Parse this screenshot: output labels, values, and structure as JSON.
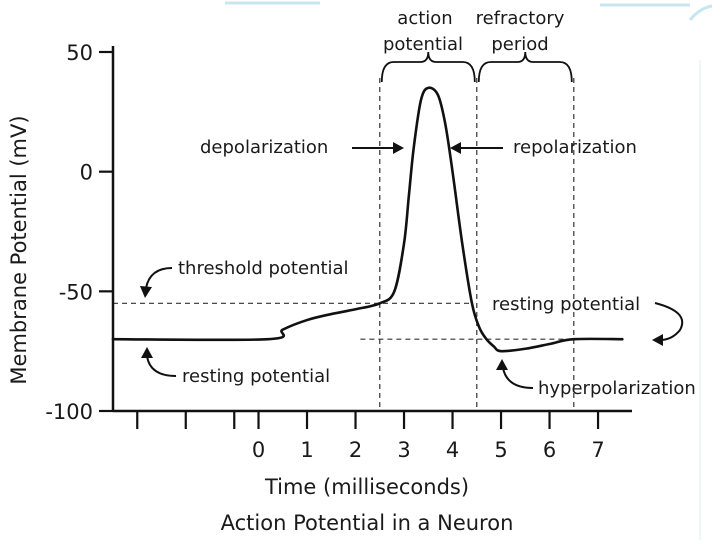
{
  "chart_data": {
    "type": "line",
    "title": "Action Potential in a Neuron",
    "xlabel": "Time (milliseconds)",
    "ylabel": "Membrane Potential (mV)",
    "xlim": [
      -3,
      7.7
    ],
    "ylim": [
      -100,
      50
    ],
    "x_ticks": [
      0,
      1,
      2,
      3,
      4,
      5,
      6,
      7
    ],
    "x_tick_labels": [
      "0",
      "1",
      "2",
      "3",
      "4",
      "5",
      "6",
      "7"
    ],
    "y_ticks": [
      50,
      0,
      -50,
      -100
    ],
    "y_tick_labels": [
      "50",
      "0",
      "-50",
      "-100"
    ],
    "minor_x_ticks": [
      -2.5,
      -1.5,
      -0.5
    ],
    "series": [
      {
        "points": [
          [
            -3.0,
            -70
          ],
          [
            0.2,
            -70
          ],
          [
            0.5,
            -66
          ],
          [
            1.0,
            -62
          ],
          [
            1.5,
            -59.5
          ],
          [
            2.0,
            -57.5
          ],
          [
            2.5,
            -55
          ],
          [
            2.8,
            -50
          ],
          [
            3.0,
            -30
          ],
          [
            3.1,
            -10
          ],
          [
            3.2,
            10
          ],
          [
            3.35,
            30
          ],
          [
            3.5,
            35
          ],
          [
            3.7,
            32
          ],
          [
            3.85,
            20
          ],
          [
            4.0,
            0
          ],
          [
            4.2,
            -30
          ],
          [
            4.4,
            -55
          ],
          [
            4.55,
            -65
          ],
          [
            4.7,
            -70
          ],
          [
            4.85,
            -73
          ],
          [
            5.0,
            -75
          ],
          [
            5.5,
            -74
          ],
          [
            6.0,
            -72
          ],
          [
            6.5,
            -70
          ],
          [
            7.5,
            -70
          ]
        ]
      }
    ],
    "reference_lines": {
      "threshold_y": -55,
      "resting_y": -70,
      "vertical_x": [
        2.5,
        4.5,
        6.5
      ]
    },
    "phase_brackets": [
      {
        "label_lines": [
          "action",
          "potential"
        ],
        "x_start": 2.5,
        "x_end": 4.5
      },
      {
        "label_lines": [
          "refractory",
          "period"
        ],
        "x_start": 4.5,
        "x_end": 6.5
      }
    ],
    "annotations": {
      "depolarization": "depolarization",
      "repolarization": "repolarization",
      "threshold_potential": "threshold potential",
      "resting_potential_left": "resting potential",
      "resting_potential_right": "resting potential",
      "hyperpolarization": "hyperpolarization"
    },
    "grid": false,
    "line_color": "#111111",
    "accent_color": "#c8e6ef"
  }
}
